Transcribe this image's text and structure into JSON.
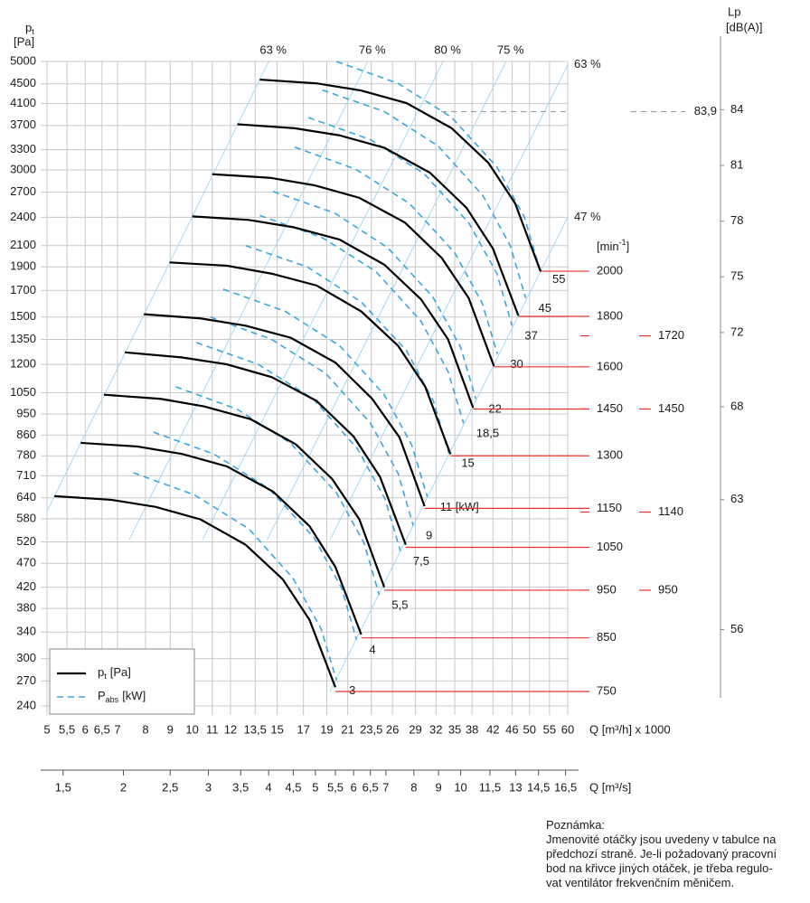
{
  "chart_data": {
    "type": "line",
    "log_x": true,
    "log_y": true,
    "grid": true,
    "y_label": {
      "symbol": "p",
      "sub": "t",
      "unit": "[Pa]"
    },
    "x_label": "Q [m³/h] x 1000",
    "x2_label": "Q [m³/s]",
    "xlim": [
      5,
      60
    ],
    "xticks": [
      5,
      {
        "value": 5.5,
        "label": "5,5"
      },
      6,
      {
        "value": 6.5,
        "label": "6,5"
      },
      7,
      8,
      9,
      10,
      11,
      12,
      {
        "value": 13.5,
        "label": "13,5"
      },
      15,
      17,
      19,
      21,
      {
        "value": 23.5,
        "label": "23,5"
      },
      26,
      29,
      32,
      35,
      38,
      42,
      46,
      50,
      55,
      60
    ],
    "x2lim": [
      1.389,
      16.67
    ],
    "x2ticks": [
      {
        "value": 1.5,
        "label": "1,5"
      },
      2,
      {
        "value": 2.5,
        "label": "2,5"
      },
      3,
      {
        "value": 3.5,
        "label": "3,5"
      },
      4,
      {
        "value": 4.5,
        "label": "4,5"
      },
      5,
      {
        "value": 5.5,
        "label": "5,5"
      },
      6,
      {
        "value": 6.5,
        "label": "6,5"
      },
      7,
      8,
      9,
      10,
      {
        "value": 11.5,
        "label": "11,5"
      },
      13,
      {
        "value": 14.5,
        "label": "14,5"
      },
      {
        "value": 16.5,
        "label": "16,5"
      }
    ],
    "ylim": [
      230,
      5000
    ],
    "yticks": [
      5000,
      4500,
      4100,
      3700,
      3300,
      3000,
      2700,
      2400,
      2100,
      1900,
      1700,
      1500,
      1350,
      1200,
      1050,
      950,
      860,
      780,
      710,
      640,
      580,
      520,
      470,
      420,
      380,
      340,
      300,
      270,
      240
    ],
    "curve_color": "#000000",
    "power_color": "#3aa7dd",
    "efficiency_color": "#a9d8f0",
    "speed_line_color": "#e8322b",
    "speed_unit": {
      "base": "[min",
      "sup": "-1",
      "close": "]"
    },
    "speed_lim": [
      710,
      3263
    ],
    "pressure_curves": [
      {
        "speed": 2000,
        "x": [
          13.8,
          18.1,
          22.4,
          27.8,
          34.5,
          41.1,
          46.7,
          52.7
        ],
        "values": [
          4590,
          4510,
          4360,
          4110,
          3650,
          3100,
          2560,
          1860
        ]
      },
      {
        "speed": 1800,
        "x": [
          12.4,
          16.3,
          20.2,
          25.0,
          31.1,
          37.0,
          42.0,
          47.4
        ],
        "values": [
          3720,
          3650,
          3530,
          3330,
          2960,
          2510,
          2070,
          1510
        ]
      },
      {
        "speed": 1600,
        "x": [
          11.0,
          14.5,
          17.9,
          22.2,
          27.6,
          32.9,
          37.4,
          42.2
        ],
        "values": [
          2940,
          2890,
          2790,
          2630,
          2340,
          1980,
          1640,
          1190
        ]
      },
      {
        "speed": 1450,
        "x": [
          10.0,
          13.1,
          16.2,
          20.2,
          25.0,
          29.8,
          33.9,
          38.2
        ],
        "values": [
          2410,
          2370,
          2290,
          2160,
          1920,
          1630,
          1350,
          978
        ]
      },
      {
        "speed": 1300,
        "x": [
          8.97,
          11.8,
          14.6,
          18.1,
          22.4,
          26.7,
          30.4,
          34.3
        ],
        "values": [
          1940,
          1910,
          1840,
          1740,
          1540,
          1310,
          1080,
          786
        ]
      },
      {
        "speed": 1150,
        "x": [
          7.94,
          10.4,
          12.9,
          16.0,
          19.8,
          23.6,
          26.9,
          30.3
        ],
        "values": [
          1520,
          1490,
          1440,
          1360,
          1210,
          1020,
          850,
          615
        ]
      },
      {
        "speed": 1050,
        "x": [
          7.25,
          9.5,
          11.8,
          14.6,
          18.1,
          21.6,
          24.5,
          27.7
        ],
        "values": [
          1270,
          1240,
          1200,
          1130,
          1010,
          854,
          706,
          513
        ]
      },
      {
        "speed": 950,
        "x": [
          6.56,
          8.6,
          10.6,
          13.2,
          16.4,
          19.5,
          22.2,
          25.0
        ],
        "values": [
          1040,
          1020,
          984,
          927,
          823,
          699,
          578,
          420
        ]
      },
      {
        "speed": 850,
        "x": [
          5.87,
          7.69,
          9.52,
          11.8,
          14.7,
          17.5,
          19.8,
          22.4
        ],
        "values": [
          829,
          815,
          787,
          742,
          659,
          560,
          462,
          336
        ]
      },
      {
        "speed": 750,
        "x": [
          5.18,
          6.79,
          8.4,
          10.4,
          12.9,
          15.4,
          17.5,
          19.8
        ],
        "values": [
          645,
          634,
          613,
          578,
          513,
          436,
          360,
          262
        ]
      }
    ],
    "power_curves": [
      {
        "power": 55,
        "label": "55",
        "x": [
          19.9,
          26.7,
          34.5,
          42.8,
          48.8,
          52.5
        ],
        "values": [
          5000,
          4510,
          3840,
          3040,
          2400,
          1880
        ]
      },
      {
        "power": 45,
        "label": "45",
        "x": [
          18.6,
          25.0,
          32.3,
          40.0,
          45.6,
          49.1
        ],
        "values": [
          4370,
          3950,
          3360,
          2660,
          2100,
          1640
        ]
      },
      {
        "power": 37,
        "label": "37",
        "x": [
          17.4,
          23.4,
          30.2,
          37.5,
          42.8,
          46.0
        ],
        "values": [
          3840,
          3460,
          2950,
          2330,
          1840,
          1440
        ]
      },
      {
        "power": 30,
        "label": "30",
        "x": [
          16.3,
          21.8,
          28.2,
          35.0,
          39.9,
          42.9
        ],
        "values": [
          3340,
          3010,
          2560,
          2030,
          1600,
          1260
        ]
      },
      {
        "power": 22,
        "label": "22",
        "x": [
          14.7,
          19.7,
          25.4,
          31.5,
          36.0,
          38.7
        ],
        "values": [
          2710,
          2450,
          2080,
          1650,
          1300,
          1020
        ]
      },
      {
        "power": 18.5,
        "label": "18,5",
        "x": [
          13.8,
          18.6,
          24.0,
          29.8,
          33.9,
          36.5
        ],
        "values": [
          2420,
          2180,
          1860,
          1470,
          1160,
          909
        ]
      },
      {
        "power": 15,
        "label": "15",
        "x": [
          12.9,
          17.3,
          22.4,
          27.8,
          31.6,
          34.0
        ],
        "values": [
          2100,
          1900,
          1610,
          1280,
          1010,
          790
        ]
      },
      {
        "power": 11,
        "label": "11 [kW]",
        "x": [
          11.6,
          15.6,
          20.2,
          25.0,
          28.5,
          30.7
        ],
        "values": [
          1710,
          1540,
          1310,
          1040,
          821,
          643
        ]
      },
      {
        "power": 9,
        "label": "9",
        "x": [
          10.9,
          14.6,
          18.9,
          23.4,
          26.7,
          28.7
        ],
        "values": [
          1500,
          1350,
          1150,
          910,
          718,
          562
        ]
      },
      {
        "power": 7.5,
        "label": "7,5",
        "x": [
          10.2,
          13.7,
          17.8,
          22.0,
          25.1,
          27.0
        ],
        "values": [
          1330,
          1200,
          1020,
          806,
          636,
          498
        ]
      },
      {
        "power": 5.5,
        "label": "5,5",
        "x": [
          9.24,
          12.4,
          16.0,
          19.9,
          22.7,
          24.4
        ],
        "values": [
          1080,
          971,
          827,
          655,
          517,
          405
        ]
      },
      {
        "power": 4,
        "label": "4",
        "x": [
          8.31,
          11.1,
          14.4,
          17.9,
          20.4,
          21.9
        ],
        "values": [
          872,
          786,
          669,
          530,
          418,
          328
        ]
      },
      {
        "power": 3,
        "label": "3",
        "x": [
          7.55,
          10.1,
          13.1,
          16.2,
          18.5,
          19.9
        ],
        "values": [
          720,
          649,
          553,
          437,
          345,
          271
        ]
      }
    ],
    "efficiency_lines": [
      {
        "label": "63 %",
        "x": [
          5,
          14.4
        ],
        "values": [
          600,
          5000
        ]
      },
      {
        "label": "76 %",
        "x": [
          7.4,
          23.1
        ],
        "values": [
          525,
          5000
        ]
      },
      {
        "label": "80 %",
        "x": [
          10.5,
          33.1
        ],
        "values": [
          525,
          5000
        ]
      },
      {
        "label": "75 %",
        "x": [
          14.3,
          44.7
        ],
        "values": [
          525,
          5000
        ]
      },
      {
        "label": "63 %",
        "x": [
          19.3,
          60
        ],
        "values": [
          525,
          4920
        ]
      },
      {
        "label": "47 %",
        "x": [
          19.3,
          60
        ],
        "values": [
          257,
          2400
        ]
      }
    ],
    "lp_axis": {
      "label": "Lp",
      "unit": "[dB(A)]",
      "lim": [
        51.4,
        86.6
      ],
      "ticks": [
        84,
        81,
        78,
        75,
        72,
        68,
        63,
        56
      ]
    },
    "lp_annotation": {
      "value": 83.9,
      "label": "83,9"
    },
    "extra_speeds": [
      1720,
      1450,
      1140,
      950
    ],
    "legend": [
      {
        "symbol": "p",
        "sub": "t",
        "unit": "[Pa]"
      },
      {
        "symbol": "P",
        "sub": "abs",
        "unit": "[kW]"
      }
    ]
  },
  "note": {
    "title": "Poznámka:",
    "lines": [
      "Jmenovité otáčky jsou uvedeny v tabulce na",
      "předchozí straně. Je-li požadovaný pracovní",
      "bod na křivce jiných otáček, je třeba regulo-",
      "vat ventilátor frekvenčním měničem."
    ]
  }
}
